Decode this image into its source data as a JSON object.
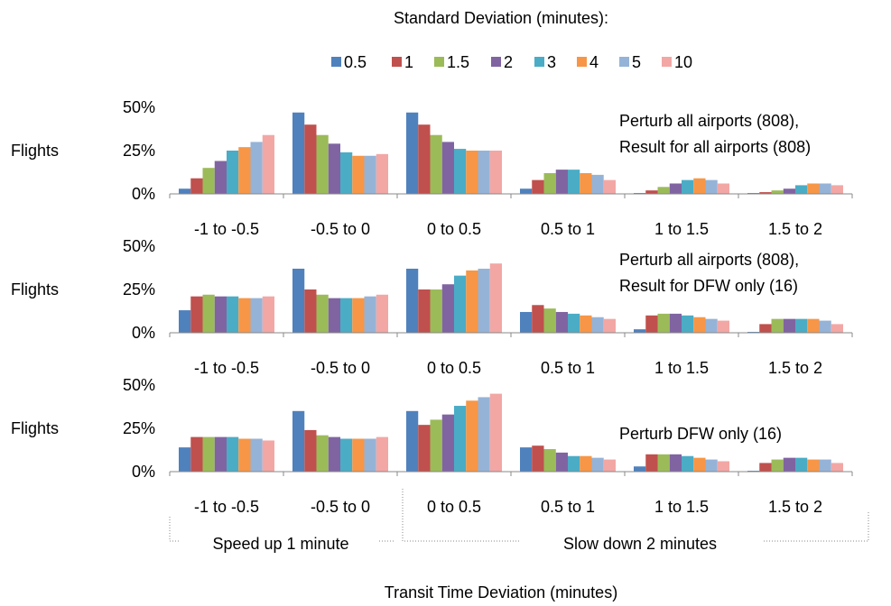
{
  "figure": {
    "legend_title": "Standard Deviation (minutes):",
    "xlabel": "Transit Time Deviation (minutes)",
    "brackets": [
      {
        "label": "Speed up 1 minute"
      },
      {
        "label": "Slow down 2 minutes"
      }
    ]
  },
  "series_colors": [
    "#4f81bd",
    "#c0504d",
    "#9bbb59",
    "#8064a2",
    "#4bacc6",
    "#f79646",
    "#95b3d7",
    "#f2a7a5"
  ],
  "chart_data": [
    {
      "type": "bar",
      "ylabel": "Flights",
      "annotation": [
        "Perturb all airports (808),",
        "Result for all airports (808)"
      ],
      "categories": [
        "-1 to -0.5",
        "-0.5 to 0",
        "0 to 0.5",
        "0.5 to 1",
        "1 to 1.5",
        "1.5 to 2"
      ],
      "yticks": [
        "0%",
        "25%",
        "50%"
      ],
      "ylim": [
        0,
        50
      ],
      "series": [
        {
          "name": "0.5",
          "values": [
            3,
            47,
            47,
            3,
            0.5,
            0.5
          ]
        },
        {
          "name": "1",
          "values": [
            9,
            40,
            40,
            8,
            2,
            1
          ]
        },
        {
          "name": "1.5",
          "values": [
            15,
            34,
            34,
            12,
            4,
            2
          ]
        },
        {
          "name": "2",
          "values": [
            19,
            29,
            30,
            14,
            6,
            3
          ]
        },
        {
          "name": "3",
          "values": [
            25,
            24,
            26,
            14,
            8,
            5
          ]
        },
        {
          "name": "4",
          "values": [
            27,
            22,
            25,
            12,
            9,
            6
          ]
        },
        {
          "name": "5",
          "values": [
            30,
            22,
            25,
            11,
            8,
            6
          ]
        },
        {
          "name": "10",
          "values": [
            34,
            23,
            25,
            8,
            6,
            5
          ]
        }
      ]
    },
    {
      "type": "bar",
      "ylabel": "Flights",
      "annotation": [
        "Perturb all airports (808),",
        "Result for DFW only (16)"
      ],
      "categories": [
        "-1 to -0.5",
        "-0.5 to 0",
        "0 to 0.5",
        "0.5 to 1",
        "1 to 1.5",
        "1.5 to 2"
      ],
      "yticks": [
        "0%",
        "25%",
        "50%"
      ],
      "ylim": [
        0,
        50
      ],
      "series": [
        {
          "name": "0.5",
          "values": [
            13,
            37,
            37,
            12,
            2,
            0.5
          ]
        },
        {
          "name": "1",
          "values": [
            21,
            25,
            25,
            16,
            10,
            5
          ]
        },
        {
          "name": "1.5",
          "values": [
            22,
            22,
            25,
            14,
            11,
            8
          ]
        },
        {
          "name": "2",
          "values": [
            21,
            20,
            28,
            12,
            11,
            8
          ]
        },
        {
          "name": "3",
          "values": [
            21,
            20,
            33,
            11,
            10,
            8
          ]
        },
        {
          "name": "4",
          "values": [
            20,
            20,
            36,
            10,
            9,
            8
          ]
        },
        {
          "name": "5",
          "values": [
            20,
            21,
            37,
            9,
            8,
            7
          ]
        },
        {
          "name": "10",
          "values": [
            21,
            22,
            40,
            8,
            7,
            5
          ]
        }
      ]
    },
    {
      "type": "bar",
      "ylabel": "Flights",
      "annotation": [
        "Perturb DFW only (16)"
      ],
      "categories": [
        "-1 to -0.5",
        "-0.5 to 0",
        "0 to 0.5",
        "0.5 to 1",
        "1 to 1.5",
        "1.5 to 2"
      ],
      "yticks": [
        "0%",
        "25%",
        "50%"
      ],
      "ylim": [
        0,
        50
      ],
      "series": [
        {
          "name": "0.5",
          "values": [
            14,
            35,
            35,
            14,
            3,
            0.5
          ]
        },
        {
          "name": "1",
          "values": [
            20,
            24,
            27,
            15,
            10,
            5
          ]
        },
        {
          "name": "1.5",
          "values": [
            20,
            21,
            30,
            13,
            10,
            7
          ]
        },
        {
          "name": "2",
          "values": [
            20,
            20,
            33,
            11,
            10,
            8
          ]
        },
        {
          "name": "3",
          "values": [
            20,
            19,
            38,
            9,
            9,
            8
          ]
        },
        {
          "name": "4",
          "values": [
            19,
            19,
            41,
            9,
            8,
            7
          ]
        },
        {
          "name": "5",
          "values": [
            19,
            19,
            43,
            8,
            7,
            7
          ]
        },
        {
          "name": "10",
          "values": [
            18,
            20,
            45,
            7,
            6,
            5
          ]
        }
      ]
    }
  ]
}
